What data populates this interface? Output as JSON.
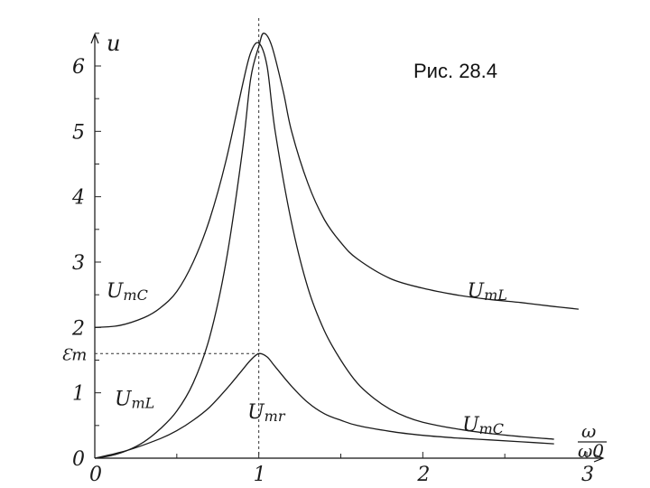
{
  "caption": "Рис. 28.4",
  "chart_data": {
    "type": "line",
    "title": "Рис. 28.4",
    "ylabel": "u",
    "xlabel": "ω/ω0",
    "xlabel_num": "ω",
    "xlabel_den": "ω0",
    "xlim": [
      0,
      3
    ],
    "ylim": [
      0,
      6.6
    ],
    "x_ticks": [
      "0",
      "1",
      "2",
      "3"
    ],
    "y_ticks": [
      "0",
      "1",
      "2",
      "3",
      "4",
      "5",
      "6"
    ],
    "emf_label": "Ɛm",
    "emf_value": 1.6,
    "resonance_x": 1,
    "series": [
      {
        "name": "UmC",
        "points": [
          [
            0,
            2.0
          ],
          [
            0.15,
            2.03
          ],
          [
            0.3,
            2.15
          ],
          [
            0.4,
            2.3
          ],
          [
            0.5,
            2.55
          ],
          [
            0.6,
            3.0
          ],
          [
            0.7,
            3.65
          ],
          [
            0.8,
            4.55
          ],
          [
            0.9,
            5.7
          ],
          [
            0.95,
            6.2
          ],
          [
            1.0,
            6.35
          ],
          [
            1.05,
            6.0
          ],
          [
            1.1,
            5.0
          ],
          [
            1.2,
            3.6
          ],
          [
            1.3,
            2.6
          ],
          [
            1.4,
            1.95
          ],
          [
            1.5,
            1.5
          ],
          [
            1.6,
            1.15
          ],
          [
            1.7,
            0.92
          ],
          [
            1.8,
            0.75
          ],
          [
            1.9,
            0.63
          ],
          [
            2.0,
            0.55
          ],
          [
            2.2,
            0.45
          ],
          [
            2.4,
            0.38
          ],
          [
            2.6,
            0.33
          ],
          [
            2.8,
            0.29
          ]
        ]
      },
      {
        "name": "UmL",
        "points": [
          [
            0,
            0
          ],
          [
            0.1,
            0.04
          ],
          [
            0.2,
            0.12
          ],
          [
            0.3,
            0.25
          ],
          [
            0.4,
            0.45
          ],
          [
            0.5,
            0.72
          ],
          [
            0.6,
            1.15
          ],
          [
            0.7,
            1.85
          ],
          [
            0.8,
            3.0
          ],
          [
            0.9,
            4.7
          ],
          [
            0.95,
            5.8
          ],
          [
            1.0,
            6.3
          ],
          [
            1.03,
            6.5
          ],
          [
            1.08,
            6.3
          ],
          [
            1.15,
            5.6
          ],
          [
            1.2,
            5.0
          ],
          [
            1.3,
            4.2
          ],
          [
            1.4,
            3.65
          ],
          [
            1.5,
            3.3
          ],
          [
            1.6,
            3.05
          ],
          [
            1.8,
            2.75
          ],
          [
            2.0,
            2.6
          ],
          [
            2.2,
            2.5
          ],
          [
            2.4,
            2.43
          ],
          [
            2.6,
            2.38
          ],
          [
            2.8,
            2.32
          ],
          [
            2.95,
            2.28
          ]
        ]
      },
      {
        "name": "Umr",
        "points": [
          [
            0,
            0
          ],
          [
            0.2,
            0.12
          ],
          [
            0.4,
            0.3
          ],
          [
            0.5,
            0.42
          ],
          [
            0.6,
            0.58
          ],
          [
            0.7,
            0.78
          ],
          [
            0.8,
            1.05
          ],
          [
            0.9,
            1.35
          ],
          [
            0.95,
            1.5
          ],
          [
            1.0,
            1.6
          ],
          [
            1.05,
            1.55
          ],
          [
            1.1,
            1.4
          ],
          [
            1.2,
            1.1
          ],
          [
            1.3,
            0.85
          ],
          [
            1.4,
            0.68
          ],
          [
            1.5,
            0.58
          ],
          [
            1.6,
            0.5
          ],
          [
            1.8,
            0.41
          ],
          [
            2.0,
            0.35
          ],
          [
            2.2,
            0.31
          ],
          [
            2.4,
            0.28
          ],
          [
            2.6,
            0.25
          ],
          [
            2.8,
            0.22
          ]
        ]
      }
    ],
    "curve_labels": [
      {
        "text": "UmC",
        "x": 0.28,
        "y": 2.6
      },
      {
        "text": "UmL",
        "x": 2.48,
        "y": 2.6
      },
      {
        "text": "UmL",
        "x": 0.33,
        "y": 0.95
      },
      {
        "text": "Umr",
        "x": 1.14,
        "y": 0.75
      },
      {
        "text": "UmC",
        "x": 2.45,
        "y": 0.55
      }
    ]
  }
}
